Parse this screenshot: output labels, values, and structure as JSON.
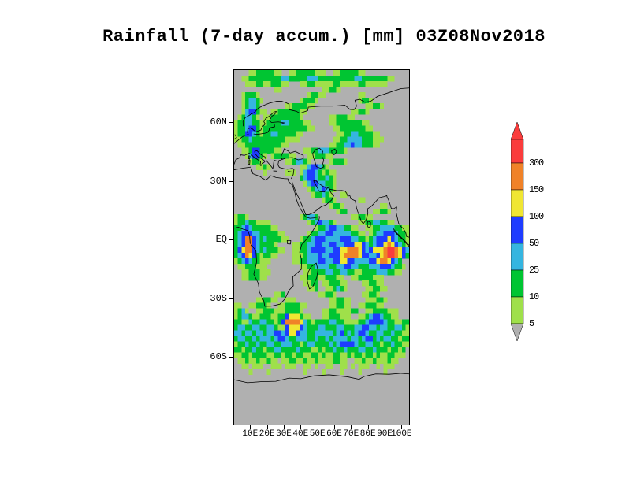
{
  "title": "Rainfall (7-day accum.) [mm] 03Z08Nov2018",
  "chart_data": {
    "type": "heatmap",
    "title": "Rainfall (7-day accum.) [mm] 03Z08Nov2018",
    "variable": "Rainfall",
    "accumulation": "7-day accum.",
    "units": "mm",
    "valid_time": "03Z08Nov2018",
    "gridlines": false,
    "background_color": "#b0b0b0",
    "lat_axis": {
      "top_lat": 87,
      "bottom_lat": -95,
      "ticks": [
        {
          "label": "60N",
          "lat": 60
        },
        {
          "label": "30N",
          "lat": 30
        },
        {
          "label": "EQ",
          "lat": 0
        },
        {
          "label": "30S",
          "lat": -30
        },
        {
          "label": "60S",
          "lat": -60
        }
      ]
    },
    "lon_axis": {
      "left_lon": 0,
      "right_lon": 105,
      "ticks": [
        {
          "label": "10E",
          "lon": 10
        },
        {
          "label": "20E",
          "lon": 20
        },
        {
          "label": "30E",
          "lon": 30
        },
        {
          "label": "40E",
          "lon": 40
        },
        {
          "label": "50E",
          "lon": 50
        },
        {
          "label": "60E",
          "lon": 60
        },
        {
          "label": "70E",
          "lon": 70
        },
        {
          "label": "80E",
          "lon": 80
        },
        {
          "label": "90E",
          "lon": 90
        },
        {
          "label": "100E",
          "lon": 100
        }
      ]
    },
    "colorbar": {
      "levels_mm": [
        5,
        10,
        25,
        50,
        100,
        150,
        300
      ],
      "segments_top_to_bottom": [
        {
          "range_mm": "> 300",
          "color": "#fa3c3c",
          "label_below": "300"
        },
        {
          "range_mm": "150-300",
          "color": "#f08228",
          "label_below": "150"
        },
        {
          "range_mm": "100-150",
          "color": "#f0e632",
          "label_below": "100"
        },
        {
          "range_mm": "50-100",
          "color": "#1e3cff",
          "label_below": "50"
        },
        {
          "range_mm": "25-50",
          "color": "#35b5e0",
          "label_below": "25"
        },
        {
          "range_mm": "10-25",
          "color": "#00c532",
          "label_below": "10"
        },
        {
          "range_mm": "5-10",
          "color": "#9fe04a",
          "label_below": "5"
        },
        {
          "range_mm": "< 5",
          "color": "#b0b0b0",
          "label_below": ""
        }
      ]
    },
    "grid": {
      "cols": 48,
      "rows": 64,
      "legend": {
        ".": "< 5 mm",
        "1": "5-10 mm",
        "2": "10-25 mm",
        "3": "25-50 mm",
        "4": "50-100 mm",
        "5": "100-150 mm",
        "6": "150-300 mm",
        "7": "> 300 mm"
      },
      "palette": {
        "1": "#9fe04a",
        "2": "#00c532",
        "3": "#35b5e0",
        "4": "#1e3cff",
        "5": "#f0e632",
        "6": "#f08228",
        "7": "#fa3c3c"
      },
      "rows_data": [
        "....112222211..1122222111..112222211............",
        "..112222222223322222333222222222233222222211....",
        "...111221122211...112211111221111122111111......",
        "...........11...........11221...................",
        "..12221.............12211.........11............",
        "..123321..........12221...........1221..........",
        "..12332.......11222211..............11221.......",
        "..1344211.1122222211............11221...........",
        ".123321.11222222221.......1122211...............",
        "122332211222233222211.....11222222211...........",
        "1223442122222222222211.....11222222211..........",
        "1224432122332222211.........112233222211........",
        "112232222222221111.........1122333322211 1......",
        ".11222222222211...........11223343322211........",
        "..11244222211......11223332 2221................",
        "...134421.1222211...1122211.....................",
        "....1221......1123321.....12221.................",
        "......1121........113443 21.....................",
        "........1.....111.134432 1211...................",
        "..................234432 2321...................",
        "...................13443 3221...................",
        "....................1233 4321...................",
        ".....................122321..11.................",
        "........................1221......11............",
        "..........................1221..........11......",
        "............................122.......11221.....",
        "1221..............12332.........112211..",
        "1223221111..........12343321......1122332211",
        "223432222211..........1223443322 11..112233332211",
        "23444332222211......1223344333332211.12334443221",
        "234664323222211...122344433334443322123444543221",
        "2346643222 21....112233443344334445543234 45654321",
        "24566432322211..112234444334455666543455 56776543",
        "234654212211....111233343344456666544334 56776542",
        "1234322111......  11223334433445544333344 5665432",
        ".11222111.........112233332233443322233 34443221",
        "..11222111.........1122223322332211222 23332211",
        "..1122211.........112221122211..112222111.",
        "...................1122.1122211....112211.......",
        "....................112..112321.....112211......",
        "...........112.........11221.......11221.....",
        "......112211..111.........112211....111221....",
        "11..112221..11222211......112211..1122211...",
        "1231..1122211122221.....1122111122..112222111.",
        "12332112221122455521 1...11222111..11234432211...",
        "22113223322124666653212222332211112234444 3221122",
        "23322332233211455543222332223322233443323 3223321",
        "33233233233443455433223333323423234432233 2232211",
        "23322323332344322333223223233332332344232 3322122",
        "12232232233223332212332222323444432233221 2232211",
        "22122322122332222322211212232232223322322 212212.",
        "11221222211221221221122121122112122122121 122111.",
        ".11211211211.112211211211112211..112112111211...",
        "..11.111..111.111..11.1..11..11.1.111..1.111....",
        "....1....1.........1....1....1....1......1......",
        "................................................",
        "................................................",
        "................................................",
        "................................................",
        "................................................",
        "................................................",
        "................................................",
        "................................................",
        "................................................"
      ]
    }
  }
}
